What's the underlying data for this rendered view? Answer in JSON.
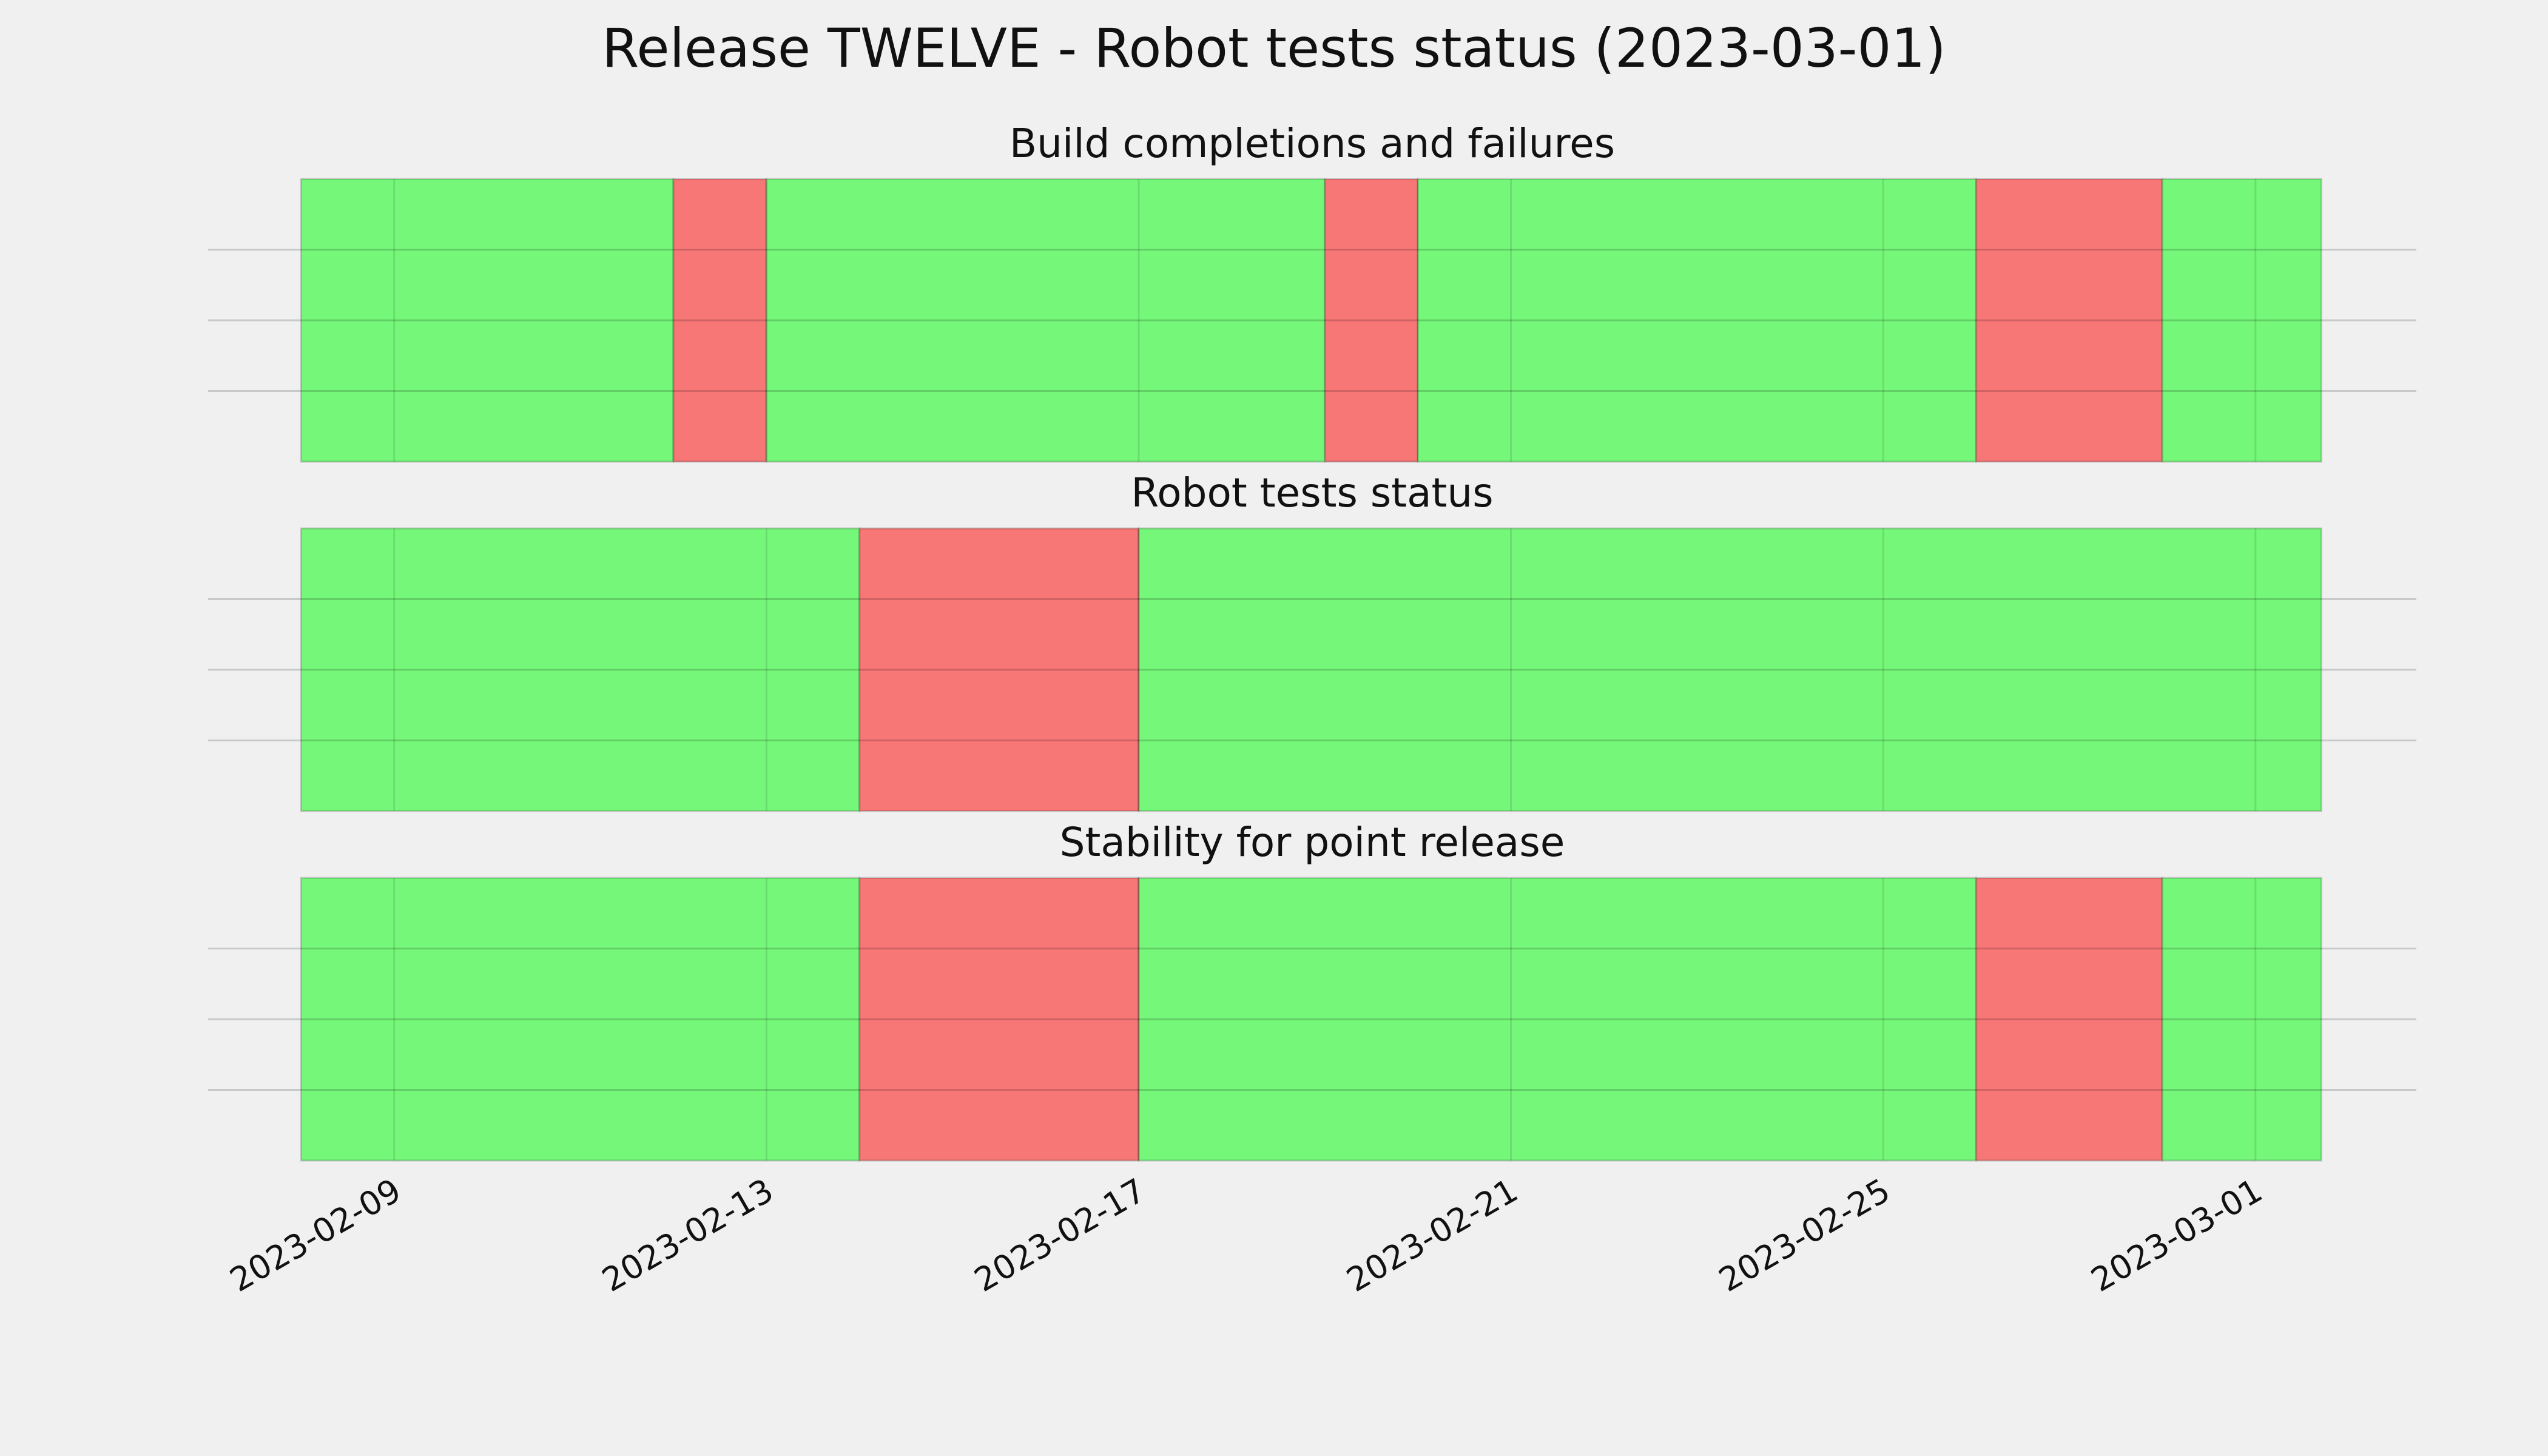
{
  "title": "Release TWELVE - Robot tests status (2023-03-01)",
  "chart_data": [
    {
      "type": "timeline",
      "title": "Build completions and failures",
      "xlim": [
        "2023-02-07",
        "2023-03-02T17:30"
      ],
      "xticks": [
        "2023-02-09",
        "2023-02-13",
        "2023-02-17",
        "2023-02-21",
        "2023-02-25",
        "2023-03-01"
      ],
      "ylim": [
        0,
        1
      ],
      "yticks": [
        0.25,
        0.5,
        0.75
      ],
      "grid": true,
      "segments": [
        {
          "start": "2023-02-08",
          "end": "2023-02-12",
          "color": "#75f77a"
        },
        {
          "start": "2023-02-12",
          "end": "2023-02-13",
          "color": "#f77676"
        },
        {
          "start": "2023-02-13",
          "end": "2023-02-19",
          "color": "#75f77a"
        },
        {
          "start": "2023-02-19",
          "end": "2023-02-20",
          "color": "#f77676"
        },
        {
          "start": "2023-02-20",
          "end": "2023-02-26",
          "color": "#75f77a"
        },
        {
          "start": "2023-02-26",
          "end": "2023-02-28",
          "color": "#f77676"
        },
        {
          "start": "2023-02-28",
          "end": "2023-03-01T17:00",
          "color": "#75f77a"
        }
      ]
    },
    {
      "type": "timeline",
      "title": "Robot tests status",
      "xlim": [
        "2023-02-07",
        "2023-03-02T17:30"
      ],
      "xticks": [
        "2023-02-09",
        "2023-02-13",
        "2023-02-17",
        "2023-02-21",
        "2023-02-25",
        "2023-03-01"
      ],
      "ylim": [
        0,
        1
      ],
      "yticks": [
        0.25,
        0.5,
        0.75
      ],
      "grid": true,
      "segments": [
        {
          "start": "2023-02-08",
          "end": "2023-02-14",
          "color": "#75f77a"
        },
        {
          "start": "2023-02-14",
          "end": "2023-02-17",
          "color": "#f77676"
        },
        {
          "start": "2023-02-17",
          "end": "2023-03-01T17:00",
          "color": "#75f77a"
        }
      ]
    },
    {
      "type": "timeline",
      "title": "Stability for point release",
      "xlim": [
        "2023-02-07",
        "2023-03-02T17:30"
      ],
      "xticks": [
        "2023-02-09",
        "2023-02-13",
        "2023-02-17",
        "2023-02-21",
        "2023-02-25",
        "2023-03-01"
      ],
      "ylim": [
        0,
        1
      ],
      "yticks": [
        0.25,
        0.5,
        0.75
      ],
      "grid": true,
      "segments": [
        {
          "start": "2023-02-08",
          "end": "2023-02-14",
          "color": "#75f77a"
        },
        {
          "start": "2023-02-14",
          "end": "2023-02-17",
          "color": "#f77676"
        },
        {
          "start": "2023-02-17",
          "end": "2023-02-26",
          "color": "#75f77a"
        },
        {
          "start": "2023-02-26",
          "end": "2023-02-28",
          "color": "#f77676"
        },
        {
          "start": "2023-02-28",
          "end": "2023-03-01T17:00",
          "color": "#75f77a"
        }
      ]
    }
  ]
}
